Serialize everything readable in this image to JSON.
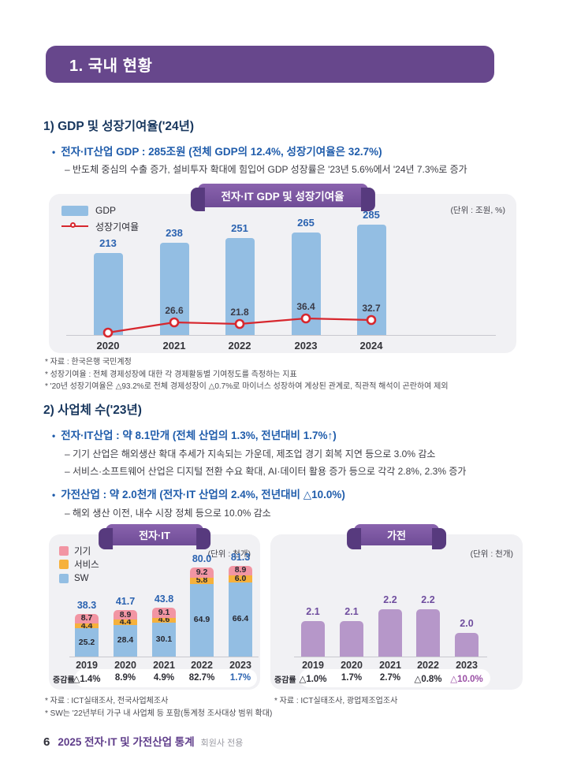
{
  "header": {
    "title": "1. 국내 현황"
  },
  "section1": {
    "heading": "1) GDP 및 성장기여율('24년)",
    "bullets": [
      {
        "marker": "•",
        "text": "전자·IT산업 GDP : 285조원 (전체 GDP의 12.4%, 성장기여율은 32.7%)",
        "subs": [
          "– 반도체 중심의 수출 증가, 설비투자 확대에 힘입어 GDP 성장률은 '23년 5.6%에서 '24년 7.3%로 증가"
        ]
      }
    ],
    "footnotes": [
      "* 자료 : 한국은행 국민계정",
      "* 성장기여율 : 전체 경제성장에 대한 각 경제활동별 기여정도를 측정하는 지표",
      "* '20년 성장기여율은 △93.2%로 전체 경제성장이 △0.7%로 마이너스 성장하여 계상된 관계로, 직관적 해석이 곤란하여 제외"
    ]
  },
  "section2": {
    "heading": "2) 사업체 수('23년)",
    "bullets": [
      {
        "marker": "•",
        "text": "전자·IT산업 : 약 8.1만개 (전체 산업의 1.3%, 전년대비 1.7%↑)",
        "subs": [
          "– 기기 산업은 해외생산 확대 추세가 지속되는 가운데, 제조업 경기 회복 지연 등으로 3.0% 감소",
          "– 서비스·소프트웨어 산업은 디지털 전환 수요 확대, AI·데이터 활용 증가 등으로 각각 2.8%, 2.3% 증가"
        ]
      },
      {
        "marker": "•",
        "text": "가전산업 : 약 2.0천개 (전자·IT 산업의 2.4%, 전년대비 △10.0%)",
        "subs": [
          "– 해외 생산 이전, 내수 시장 정체 등으로 10.0% 감소"
        ]
      }
    ],
    "footnotes_left": [
      "* 자료 : ICT실태조사, 전국사업체조사",
      "* SW는 '22년부터 가구 내 사업체 등 포함(통계청 조사대상 범위 확대)"
    ],
    "footnotes_right": [
      "* 자료 : ICT실태조사, 광업제조업조사"
    ]
  },
  "chart_data": [
    {
      "type": "bar+line",
      "title": "전자·IT GDP 및 성장기여율",
      "unit_label": "(단위 : 조원, %)",
      "categories": [
        "2020",
        "2021",
        "2022",
        "2023",
        "2024"
      ],
      "series": [
        {
          "name": "GDP",
          "type": "bar",
          "values": [
            213,
            238,
            251,
            265,
            285
          ],
          "color": "#93bee3"
        },
        {
          "name": "성장기여율",
          "type": "line",
          "values": [
            null,
            26.6,
            21.8,
            36.4,
            32.7
          ],
          "color": "#d7272e"
        }
      ],
      "legend_position": "top-left",
      "note": "2020 line value excluded (see footnote)"
    },
    {
      "type": "stacked-bar",
      "title": "전자·IT",
      "unit_label": "(단위 : 천개)",
      "categories": [
        "2019",
        "2020",
        "2021",
        "2022",
        "2023"
      ],
      "series": [
        {
          "name": "기기",
          "values": [
            8.7,
            8.9,
            9.1,
            9.2,
            8.9
          ],
          "color": "#f295a3"
        },
        {
          "name": "서비스",
          "values": [
            4.4,
            4.4,
            4.6,
            5.8,
            6.0
          ],
          "color": "#f6b13c"
        },
        {
          "name": "SW",
          "values": [
            25.2,
            28.4,
            30.1,
            64.9,
            66.4
          ],
          "color": "#93bee3"
        }
      ],
      "totals": [
        38.3,
        41.7,
        43.8,
        80.0,
        81.3
      ],
      "total_label_color": "#2a62b0",
      "change_row": {
        "label": "증감률",
        "values": [
          "△1.4%",
          "8.9%",
          "4.9%",
          "82.7%",
          "1.7%"
        ],
        "last_value_color": "#2a62b0"
      }
    },
    {
      "type": "bar",
      "title": "가전",
      "unit_label": "(단위 : 천개)",
      "categories": [
        "2019",
        "2020",
        "2021",
        "2022",
        "2023"
      ],
      "values": [
        2.1,
        2.1,
        2.2,
        2.2,
        2.0
      ],
      "bar_color": "#b697c9",
      "value_label_color": "#6f4d9e",
      "change_row": {
        "label": "증감률",
        "values": [
          "△1.0%",
          "1.7%",
          "2.7%",
          "△0.8%",
          "△10.0%"
        ],
        "last_value_color": "#9a4fa5"
      }
    }
  ],
  "footer": {
    "page_number": "6",
    "doc_title": "2025 전자·IT 및 가전산업 통계",
    "doc_subtitle": "회원사 전용"
  }
}
